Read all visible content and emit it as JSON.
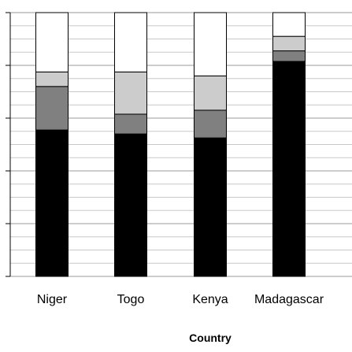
{
  "chart_data": {
    "type": "bar",
    "stacked": true,
    "title": "",
    "xlabel": "Country",
    "ylabel": "",
    "ylim": [
      0,
      100
    ],
    "grid": true,
    "legend": "none",
    "categories": [
      "Niger",
      "Togo",
      "Kenya",
      "Madagascar"
    ],
    "series": [
      {
        "color": "#000000",
        "values": [
          55.5,
          54,
          52.5,
          81.5
        ]
      },
      {
        "color": "#808080",
        "values": [
          16.5,
          7.5,
          10.5,
          4
        ]
      },
      {
        "color": "#cccccc",
        "values": [
          5.5,
          16,
          13,
          5.5
        ]
      },
      {
        "color": "#ffffff",
        "values": [
          22.5,
          22.5,
          24,
          9
        ]
      }
    ]
  }
}
